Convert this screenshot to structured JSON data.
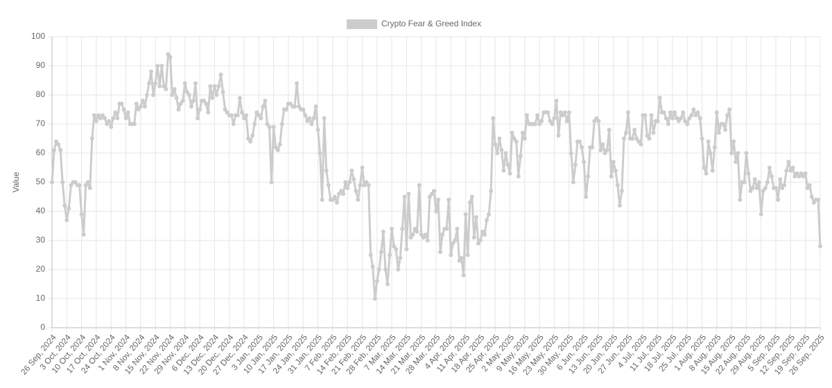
{
  "chart_data": {
    "type": "line",
    "y_label": "Value",
    "ylim": [
      0,
      100
    ],
    "yticks": [
      0,
      10,
      20,
      30,
      40,
      50,
      60,
      70,
      80,
      90,
      100
    ],
    "grid": true,
    "legend": "top",
    "categories": [
      "26 Sep, 2024",
      null,
      null,
      null,
      null,
      null,
      null,
      "3 Oct, 2024",
      null,
      null,
      null,
      null,
      null,
      null,
      "10 Oct, 2024",
      null,
      null,
      null,
      null,
      null,
      null,
      "17 Oct, 2024",
      null,
      null,
      null,
      null,
      null,
      null,
      "24 Oct, 2024",
      null,
      null,
      null,
      null,
      null,
      null,
      "1 Nov, 2024",
      null,
      null,
      null,
      null,
      null,
      null,
      "8 Nov, 2024",
      null,
      null,
      null,
      null,
      null,
      null,
      "15 Nov, 2024",
      null,
      null,
      null,
      null,
      null,
      null,
      "22 Nov, 2024",
      null,
      null,
      null,
      null,
      null,
      null,
      "29 Nov, 2024",
      null,
      null,
      null,
      null,
      null,
      null,
      "6 Dec, 2024",
      null,
      null,
      null,
      null,
      null,
      null,
      "13 Dec, 2024",
      null,
      null,
      null,
      null,
      null,
      null,
      "20 Dec, 2024",
      null,
      null,
      null,
      null,
      null,
      null,
      "27 Dec, 2024",
      null,
      null,
      null,
      null,
      null,
      null,
      "3 Jan, 2025",
      null,
      null,
      null,
      null,
      null,
      null,
      "10 Jan, 2025",
      null,
      null,
      null,
      null,
      null,
      null,
      "17 Jan, 2025",
      null,
      null,
      null,
      null,
      null,
      null,
      "24 Jan, 2025",
      null,
      null,
      null,
      null,
      null,
      null,
      "31 Jan, 2025",
      null,
      null,
      null,
      null,
      null,
      null,
      "7 Feb, 2025",
      null,
      null,
      null,
      null,
      null,
      null,
      "14 Feb, 2025",
      null,
      null,
      null,
      null,
      null,
      null,
      "21 Feb, 2025",
      null,
      null,
      null,
      null,
      null,
      null,
      "28 Feb, 2025",
      null,
      null,
      null,
      null,
      null,
      null,
      "7 Mar, 2025",
      null,
      null,
      null,
      null,
      null,
      null,
      "14 Mar, 2025",
      null,
      null,
      null,
      null,
      null,
      null,
      "21 Mar, 2025",
      null,
      null,
      null,
      null,
      null,
      null,
      "28 Mar, 2025",
      null,
      null,
      null,
      null,
      null,
      null,
      "4 Apr, 2025",
      null,
      null,
      null,
      null,
      null,
      null,
      "11 Apr, 2025",
      null,
      null,
      null,
      null,
      null,
      null,
      "18 Apr, 2025",
      null,
      null,
      null,
      null,
      null,
      null,
      "25 Apr, 2025",
      null,
      null,
      null,
      null,
      null,
      null,
      "2 May, 2025",
      null,
      null,
      null,
      null,
      null,
      null,
      "9 May, 2025",
      null,
      null,
      null,
      null,
      null,
      null,
      "16 May, 2025",
      null,
      null,
      null,
      null,
      null,
      null,
      "23 May, 2025",
      null,
      null,
      null,
      null,
      null,
      null,
      "30 May, 2025",
      null,
      null,
      null,
      null,
      null,
      null,
      "6 Jun, 2025",
      null,
      null,
      null,
      null,
      null,
      null,
      "13 Jun, 2025",
      null,
      null,
      null,
      null,
      null,
      null,
      "20 Jun, 2025",
      null,
      null,
      null,
      null,
      null,
      null,
      "27 Jun, 2025",
      null,
      null,
      null,
      null,
      null,
      null,
      "4 Jul, 2025",
      null,
      null,
      null,
      null,
      null,
      null,
      "11 Jul, 2025",
      null,
      null,
      null,
      null,
      null,
      null,
      "18 Jul, 2025",
      null,
      null,
      null,
      null,
      null,
      null,
      "25 Jul, 2025",
      null,
      null,
      null,
      null,
      null,
      null,
      "1 Aug, 2025",
      null,
      null,
      null,
      null,
      null,
      null,
      "8 Aug, 2025",
      null,
      null,
      null,
      null,
      null,
      null,
      "15 Aug, 2025",
      null,
      null,
      null,
      null,
      null,
      null,
      "22 Aug, 2025",
      null,
      null,
      null,
      null,
      null,
      null,
      "29 Aug, 2025",
      null,
      null,
      null,
      null,
      null,
      null,
      "5 Sep, 2025",
      null,
      null,
      null,
      null,
      null,
      null,
      "12 Sep, 2025",
      null,
      null,
      null,
      null,
      null,
      null,
      "19 Sep, 2025",
      null,
      null,
      null,
      null,
      null,
      null,
      "26 Sep, 2025"
    ],
    "series": [
      {
        "name": "Crypto Fear & Greed Index",
        "color": "#cccccc",
        "values": [
          50,
          61,
          64,
          63,
          61,
          50,
          42,
          37,
          41,
          49,
          50,
          50,
          49,
          49,
          39,
          32,
          49,
          50,
          48,
          65,
          73,
          71,
          73,
          72,
          73,
          72,
          70,
          71,
          69,
          72,
          74,
          72,
          77,
          77,
          75,
          72,
          74,
          70,
          70,
          70,
          77,
          75,
          76,
          78,
          76,
          80,
          84,
          88,
          80,
          84,
          90,
          83,
          90,
          83,
          82,
          94,
          93,
          80,
          82,
          79,
          75,
          77,
          78,
          84,
          81,
          80,
          76,
          78,
          84,
          72,
          75,
          78,
          78,
          77,
          74,
          83,
          79,
          83,
          80,
          83,
          87,
          81,
          75,
          74,
          73,
          73,
          70,
          73,
          73,
          79,
          74,
          72,
          73,
          65,
          64,
          66,
          70,
          74,
          73,
          72,
          76,
          78,
          70,
          69,
          50,
          69,
          62,
          61,
          63,
          70,
          75,
          75,
          77,
          77,
          76,
          76,
          84,
          76,
          75,
          75,
          73,
          71,
          72,
          70,
          72,
          76,
          68,
          60,
          44,
          72,
          54,
          49,
          44,
          44,
          45,
          43,
          46,
          47,
          46,
          50,
          48,
          50,
          54,
          51,
          47,
          44,
          49,
          55,
          49,
          50,
          49,
          25,
          21,
          10,
          16,
          20,
          26,
          33,
          20,
          15,
          25,
          34,
          28,
          27,
          20,
          24,
          34,
          45,
          27,
          46,
          31,
          32,
          34,
          33,
          49,
          32,
          31,
          32,
          30,
          45,
          46,
          47,
          40,
          44,
          26,
          32,
          34,
          34,
          44,
          25,
          29,
          30,
          34,
          23,
          24,
          18,
          39,
          25,
          43,
          45,
          31,
          38,
          29,
          30,
          33,
          32,
          37,
          39,
          47,
          72,
          63,
          60,
          65,
          61,
          54,
          60,
          56,
          53,
          67,
          65,
          64,
          52,
          59,
          67,
          65,
          73,
          70,
          70,
          70,
          70,
          73,
          70,
          71,
          74,
          74,
          74,
          71,
          70,
          72,
          78,
          66,
          74,
          73,
          74,
          71,
          74,
          60,
          50,
          56,
          64,
          64,
          62,
          57,
          45,
          52,
          62,
          62,
          71,
          72,
          71,
          61,
          63,
          60,
          61,
          68,
          52,
          57,
          54,
          49,
          42,
          47,
          65,
          67,
          74,
          65,
          65,
          68,
          65,
          64,
          63,
          73,
          73,
          66,
          65,
          73,
          67,
          71,
          71,
          79,
          74,
          74,
          72,
          70,
          74,
          72,
          74,
          72,
          71,
          72,
          74,
          71,
          70,
          72,
          73,
          75,
          73,
          74,
          72,
          65,
          55,
          53,
          64,
          60,
          54,
          62,
          74,
          67,
          70,
          70,
          68,
          73,
          75,
          60,
          64,
          57,
          60,
          44,
          50,
          50,
          60,
          53,
          47,
          48,
          51,
          48,
          50,
          39,
          47,
          48,
          50,
          55,
          52,
          48,
          48,
          44,
          51,
          48,
          49,
          54,
          57,
          54,
          55,
          52,
          53,
          52,
          53,
          52,
          53,
          48,
          49,
          45,
          43,
          44,
          44,
          28
        ]
      }
    ]
  }
}
